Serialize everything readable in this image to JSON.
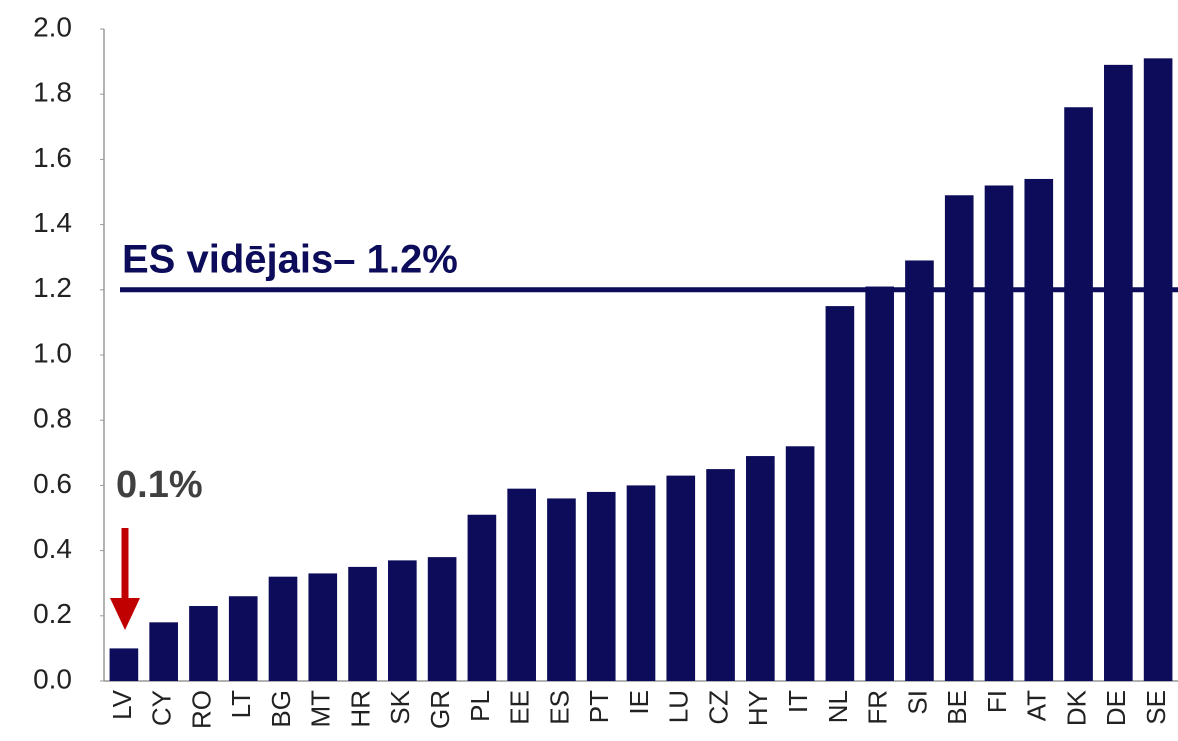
{
  "chart_data": {
    "type": "bar",
    "categories": [
      "LV",
      "CY",
      "RO",
      "LT",
      "BG",
      "MT",
      "HR",
      "SK",
      "GR",
      "PL",
      "EE",
      "ES",
      "PT",
      "IE",
      "LU",
      "CZ",
      "HY",
      "IT",
      "NL",
      "FR",
      "SI",
      "BE",
      "FI",
      "AT",
      "DK",
      "DE",
      "SE"
    ],
    "values": [
      0.1,
      0.18,
      0.23,
      0.26,
      0.32,
      0.33,
      0.35,
      0.37,
      0.38,
      0.51,
      0.59,
      0.56,
      0.58,
      0.6,
      0.63,
      0.65,
      0.69,
      0.72,
      1.15,
      1.21,
      1.29,
      1.49,
      1.52,
      1.54,
      1.76,
      1.89,
      1.91
    ],
    "color": "#0c0c5a",
    "ylim": [
      0,
      2
    ],
    "yticks": [
      {
        "value": 0,
        "label": "0.0"
      },
      {
        "value": 0.2,
        "label": "0.2"
      },
      {
        "value": 0.4,
        "label": "0.4"
      },
      {
        "value": 0.6,
        "label": "0.6"
      },
      {
        "value": 0.8,
        "label": "0.8"
      },
      {
        "value": 1,
        "label": "1.0"
      },
      {
        "value": 1.2,
        "label": "1.2"
      },
      {
        "value": 1.4,
        "label": "1.4"
      },
      {
        "value": 1.6,
        "label": "1.6"
      },
      {
        "value": 1.8,
        "label": "1.8"
      },
      {
        "value": 2,
        "label": "2.0"
      }
    ],
    "reference_line": {
      "value": 1.2,
      "label": "ES vidējais– 1.2%"
    },
    "annotation": "0.1%"
  }
}
